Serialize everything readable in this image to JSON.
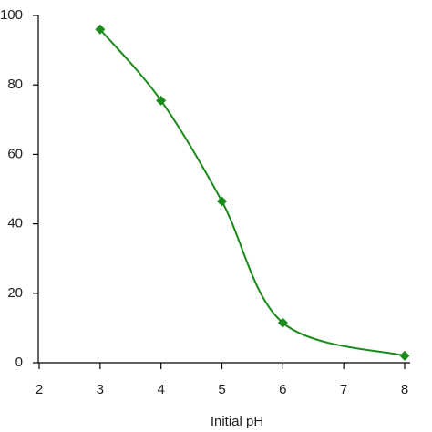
{
  "chart_data": {
    "type": "line",
    "x_label": "Initial pH",
    "x": [
      3,
      4,
      5,
      6,
      8
    ],
    "values": [
      96,
      75.5,
      46.5,
      11.5,
      2
    ],
    "color": "#1a8a1a",
    "xlim": [
      2,
      8
    ],
    "xticks": [
      2,
      3,
      4,
      5,
      6,
      7,
      8
    ],
    "ylim": [
      0,
      100
    ],
    "yticks": [
      0,
      20,
      40,
      60,
      80,
      100
    ]
  }
}
